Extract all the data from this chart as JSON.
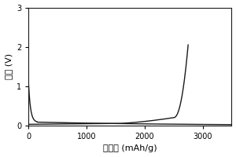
{
  "title": "",
  "xlabel": "比容量 (mAh/g)",
  "ylabel": "电压 (V)",
  "xlim": [
    0,
    3500
  ],
  "ylim": [
    0,
    3
  ],
  "xticks": [
    0,
    1000,
    2000,
    3000
  ],
  "yticks": [
    0,
    1,
    2,
    3
  ],
  "line_color": "#1a1a1a",
  "background_color": "#ffffff",
  "figsize": [
    3.0,
    2.0
  ],
  "dpi": 100
}
